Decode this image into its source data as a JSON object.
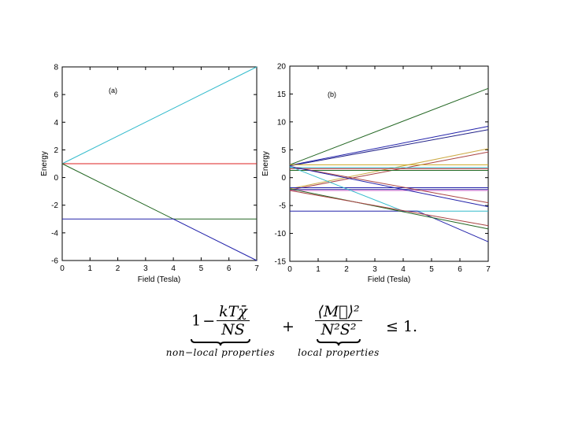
{
  "chart_data": [
    {
      "type": "line",
      "panel_label": "(a)",
      "xlabel": "Field (Tesla)",
      "ylabel": "Energy",
      "xlim": [
        0,
        7
      ],
      "ylim": [
        -6,
        8
      ],
      "xticks": [
        0,
        1,
        2,
        3,
        4,
        5,
        6,
        7
      ],
      "yticks": [
        -6,
        -4,
        -2,
        0,
        2,
        4,
        6,
        8
      ],
      "series": [
        {
          "color": "#33bbcc",
          "x": [
            0,
            7
          ],
          "y": [
            1,
            8
          ]
        },
        {
          "color": "#dd2222",
          "x": [
            0,
            7
          ],
          "y": [
            1,
            1
          ]
        },
        {
          "color": "#226622",
          "x": [
            0,
            4,
            7
          ],
          "y": [
            1,
            -3,
            -3
          ]
        },
        {
          "color": "#2222aa",
          "x": [
            0,
            4,
            7
          ],
          "y": [
            -3,
            -3,
            -6
          ]
        }
      ]
    },
    {
      "type": "line",
      "panel_label": "(b)",
      "xlabel": "Field (Tesla)",
      "ylabel": "Energy",
      "xlim": [
        0,
        7
      ],
      "ylim": [
        -15,
        20
      ],
      "xticks": [
        0,
        1,
        2,
        3,
        4,
        5,
        6,
        7
      ],
      "yticks": [
        -15,
        -10,
        -5,
        0,
        5,
        10,
        15,
        20
      ],
      "series": [
        {
          "color": "#226622",
          "x": [
            0,
            7
          ],
          "y": [
            2.3,
            16
          ]
        },
        {
          "color": "#2222aa",
          "x": [
            0,
            7
          ],
          "y": [
            2.2,
            9.2
          ]
        },
        {
          "color": "#222288",
          "x": [
            0,
            7
          ],
          "y": [
            2.1,
            8.6
          ]
        },
        {
          "color": "#ccaa44",
          "x": [
            0,
            7
          ],
          "y": [
            -2.0,
            5.2
          ]
        },
        {
          "color": "#aa4444",
          "x": [
            0,
            7
          ],
          "y": [
            -2.2,
            4.6
          ]
        },
        {
          "color": "#ccaa22",
          "x": [
            0,
            7
          ],
          "y": [
            2.3,
            2.3
          ]
        },
        {
          "color": "#33bbcc",
          "x": [
            0,
            7
          ],
          "y": [
            1.8,
            1.8
          ]
        },
        {
          "color": "#cc3333",
          "x": [
            0,
            7
          ],
          "y": [
            1.6,
            1.6
          ]
        },
        {
          "color": "#226622",
          "x": [
            0,
            7
          ],
          "y": [
            1.3,
            1.3
          ]
        },
        {
          "color": "#2222aa",
          "x": [
            0,
            7
          ],
          "y": [
            -1.8,
            -1.8
          ]
        },
        {
          "color": "#cc66cc",
          "x": [
            0,
            7
          ],
          "y": [
            -2.3,
            -2.3
          ]
        },
        {
          "color": "#4444aa",
          "x": [
            0,
            7
          ],
          "y": [
            -2.1,
            -2.1
          ]
        },
        {
          "color": "#aa4444",
          "x": [
            0,
            7
          ],
          "y": [
            2.0,
            -4.5
          ]
        },
        {
          "color": "#2222aa",
          "x": [
            0,
            7
          ],
          "y": [
            2.0,
            -5.2
          ]
        },
        {
          "color": "#33bbcc",
          "x": [
            0,
            4,
            7
          ],
          "y": [
            2.0,
            -6,
            -6
          ]
        },
        {
          "color": "#2222aa",
          "x": [
            0,
            4.5,
            7
          ],
          "y": [
            -6,
            -6,
            -11.5
          ]
        },
        {
          "color": "#226622",
          "x": [
            0,
            7
          ],
          "y": [
            -2.0,
            -9.2
          ]
        },
        {
          "color": "#aa4444",
          "x": [
            0,
            7
          ],
          "y": [
            -2.3,
            -8.6
          ]
        }
      ]
    }
  ],
  "formula": {
    "term1": {
      "one": "1",
      "minus": "−",
      "numerator": "kTχ̄",
      "denominator": "NS",
      "label": "non−local properties"
    },
    "plus": "+",
    "term2": {
      "numerator": "⟨M⃗⟩²",
      "denominator": "N²S²",
      "label": "local properties"
    },
    "inequality": "≤ 1."
  }
}
